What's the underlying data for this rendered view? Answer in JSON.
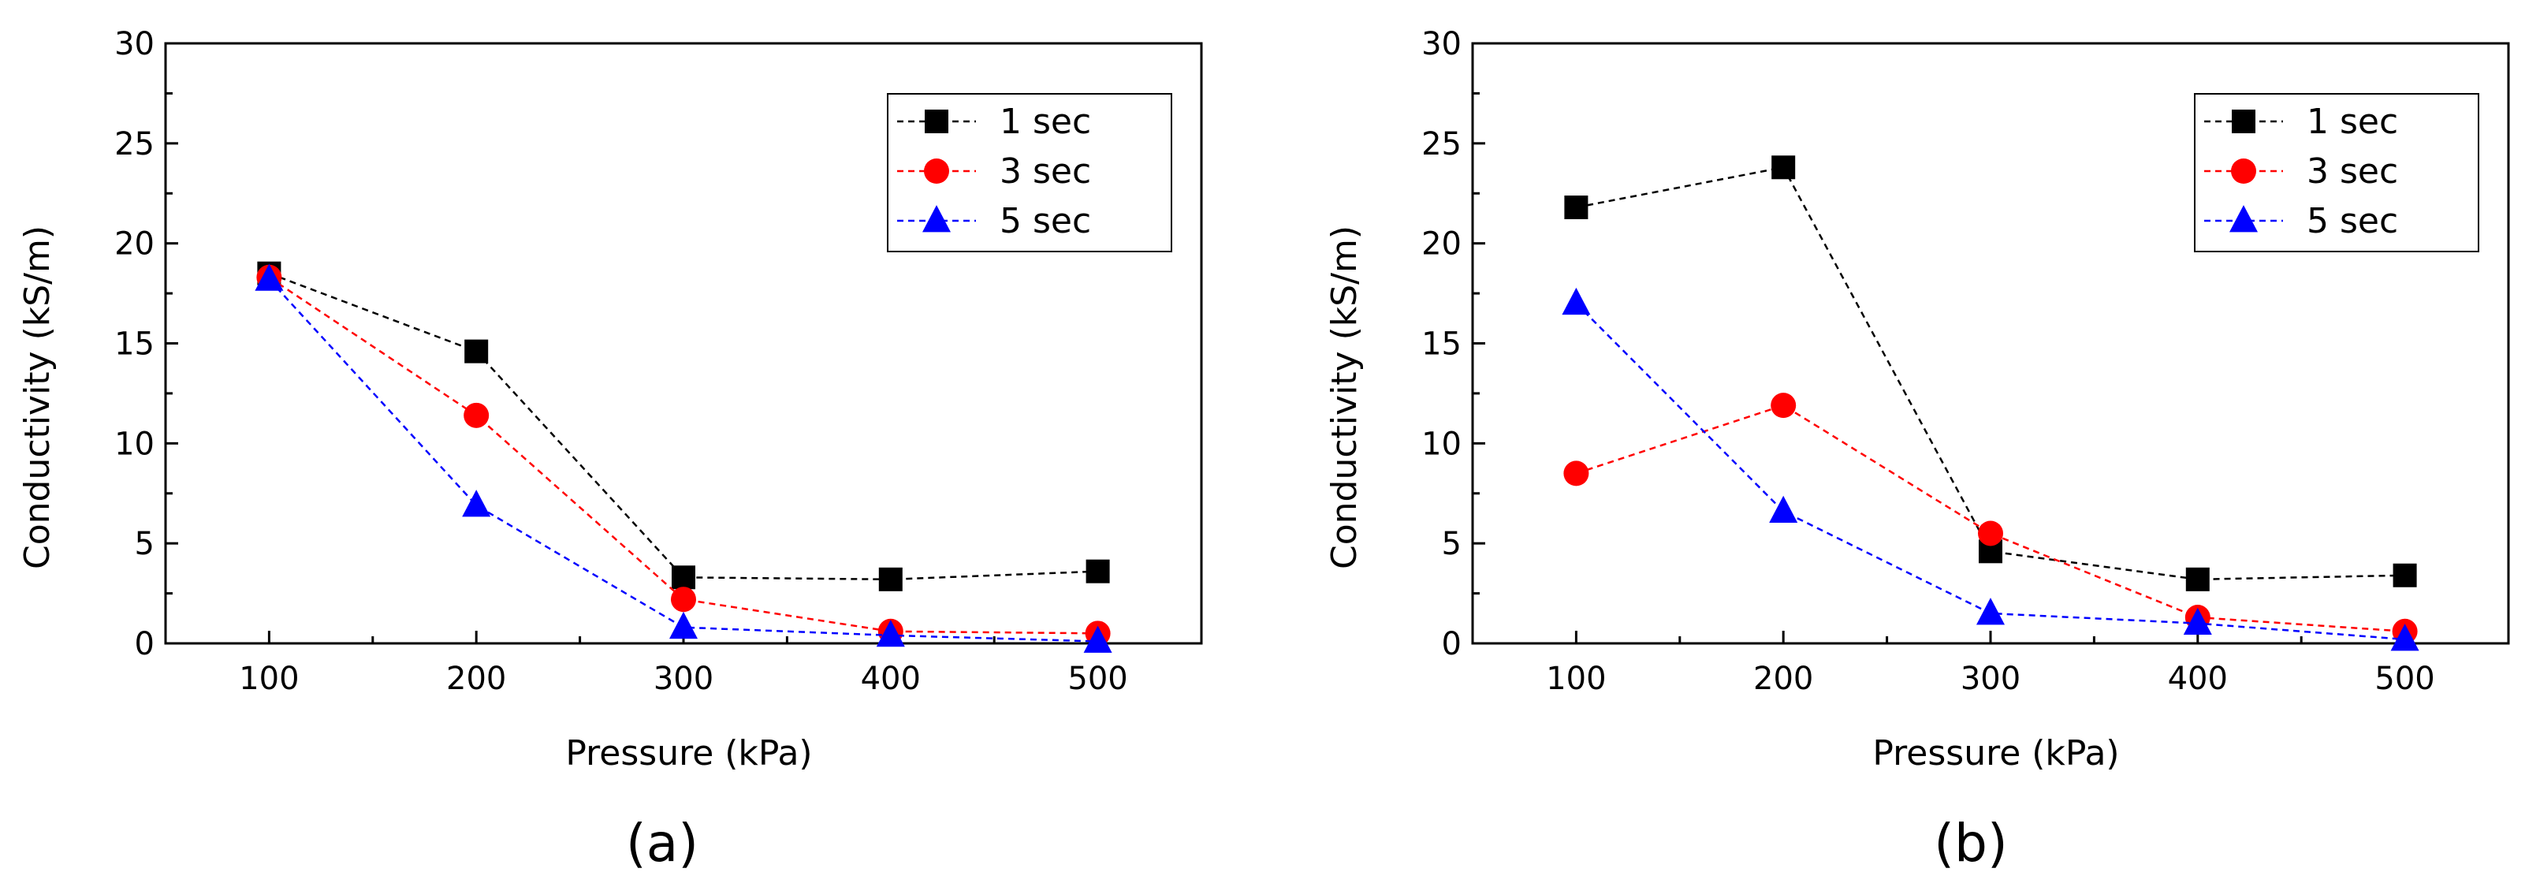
{
  "chart_data": [
    {
      "type": "line",
      "panel_label": "(a)",
      "title": "",
      "xlabel": "Pressure (kPa)",
      "ylabel": "Conductivity (kS/m)",
      "x": [
        100,
        200,
        300,
        400,
        500
      ],
      "xlim": [
        50,
        550
      ],
      "ylim": [
        0,
        30
      ],
      "xticks": [
        100,
        200,
        300,
        400,
        500
      ],
      "yticks": [
        0,
        5,
        10,
        15,
        20,
        25,
        30
      ],
      "grid": false,
      "legend_position": "top-right",
      "series": [
        {
          "name": "1 sec",
          "color": "#000000",
          "marker": "square",
          "values": [
            18.5,
            14.6,
            3.3,
            3.2,
            3.6
          ]
        },
        {
          "name": "3 sec",
          "color": "#ff0000",
          "marker": "circle",
          "values": [
            18.3,
            11.4,
            2.2,
            0.6,
            0.5
          ]
        },
        {
          "name": "5 sec",
          "color": "#0000ff",
          "marker": "triangle",
          "values": [
            18.2,
            6.9,
            0.8,
            0.4,
            0.1
          ]
        }
      ]
    },
    {
      "type": "line",
      "panel_label": "(b)",
      "title": "",
      "xlabel": "Pressure (kPa)",
      "ylabel": "Conductivity (kS/m)",
      "x": [
        100,
        200,
        300,
        400,
        500
      ],
      "xlim": [
        50,
        550
      ],
      "ylim": [
        0,
        30
      ],
      "xticks": [
        100,
        200,
        300,
        400,
        500
      ],
      "yticks": [
        0,
        5,
        10,
        15,
        20,
        25,
        30
      ],
      "grid": false,
      "legend_position": "top-right",
      "series": [
        {
          "name": "1 sec",
          "color": "#000000",
          "marker": "square",
          "values": [
            21.8,
            23.8,
            4.6,
            3.2,
            3.4
          ]
        },
        {
          "name": "3 sec",
          "color": "#ff0000",
          "marker": "circle",
          "values": [
            8.5,
            11.9,
            5.5,
            1.3,
            0.6
          ]
        },
        {
          "name": "5 sec",
          "color": "#0000ff",
          "marker": "triangle",
          "values": [
            17.0,
            6.6,
            1.5,
            1.0,
            0.2
          ]
        }
      ]
    }
  ]
}
